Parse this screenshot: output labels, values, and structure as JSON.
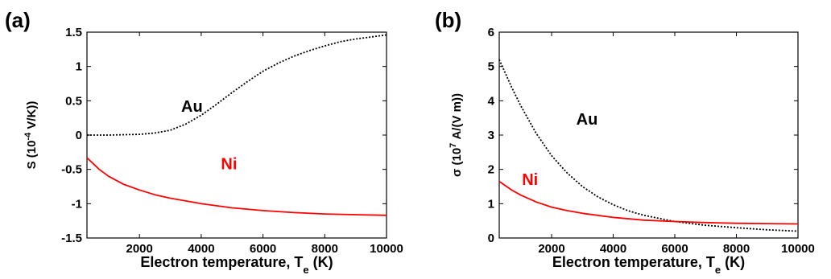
{
  "chart_data": [
    {
      "panel": "(a)",
      "type": "line",
      "title": "",
      "xlabel": "Electron temperature, T",
      "xlabel_sub": "e",
      "xlabel_unit": " (K)",
      "ylabel_pre": "S (10",
      "ylabel_sup": "-4",
      "ylabel_post": " V/K))",
      "xlim": [
        300,
        10000
      ],
      "ylim": [
        -1.5,
        1.5
      ],
      "xticks": [
        2000,
        4000,
        6000,
        8000,
        10000
      ],
      "yticks": [
        -1.5,
        -1,
        -0.5,
        0,
        0.5,
        1,
        1.5
      ],
      "ytick_labels": [
        "-1.5",
        "-1",
        "-0.5",
        "0",
        "0.5",
        "1",
        "1.5"
      ],
      "grid": false,
      "series": [
        {
          "name": "Au",
          "color": "#000000",
          "style": "dotted",
          "x": [
            300,
            1000,
            2000,
            2500,
            3000,
            3500,
            4000,
            4500,
            5000,
            5500,
            6000,
            6500,
            7000,
            7500,
            8000,
            8500,
            9000,
            9500,
            10000
          ],
          "y": [
            0.0,
            0.0,
            0.01,
            0.03,
            0.07,
            0.16,
            0.29,
            0.45,
            0.62,
            0.78,
            0.93,
            1.05,
            1.15,
            1.23,
            1.3,
            1.36,
            1.4,
            1.43,
            1.46
          ]
        },
        {
          "name": "Ni",
          "color": "#ff0000",
          "style": "solid",
          "x": [
            300,
            700,
            1000,
            1500,
            2000,
            2500,
            3000,
            4000,
            5000,
            6000,
            7000,
            8000,
            9000,
            10000
          ],
          "y": [
            -0.33,
            -0.5,
            -0.6,
            -0.72,
            -0.8,
            -0.87,
            -0.92,
            -1.0,
            -1.06,
            -1.1,
            -1.13,
            -1.15,
            -1.16,
            -1.17
          ]
        }
      ]
    },
    {
      "panel": "(b)",
      "type": "line",
      "title": "",
      "xlabel": "Electron temperature, T",
      "xlabel_sub": "e",
      "xlabel_unit": " (K)",
      "ylabel_pre": "σ (10",
      "ylabel_sup": "7",
      "ylabel_post": " A/(V m))",
      "xlim": [
        300,
        10000
      ],
      "ylim": [
        0,
        6
      ],
      "xticks": [
        2000,
        4000,
        6000,
        8000,
        10000
      ],
      "yticks": [
        0,
        1,
        2,
        3,
        4,
        5,
        6
      ],
      "ytick_labels": [
        "0",
        "1",
        "2",
        "3",
        "4",
        "5",
        "6"
      ],
      "grid": false,
      "series": [
        {
          "name": "Au",
          "color": "#000000",
          "style": "dotted",
          "x": [
            300,
            700,
            1000,
            1500,
            2000,
            2500,
            3000,
            3500,
            4000,
            4500,
            5000,
            6000,
            7000,
            8000,
            9000,
            10000
          ],
          "y": [
            5.2,
            4.4,
            3.85,
            3.05,
            2.4,
            1.9,
            1.5,
            1.2,
            0.97,
            0.79,
            0.66,
            0.48,
            0.37,
            0.3,
            0.24,
            0.2
          ]
        },
        {
          "name": "Ni",
          "color": "#ff0000",
          "style": "solid",
          "x": [
            300,
            700,
            1000,
            1500,
            2000,
            2500,
            3000,
            4000,
            5000,
            6000,
            7000,
            8000,
            9000,
            10000
          ],
          "y": [
            1.65,
            1.4,
            1.25,
            1.05,
            0.9,
            0.8,
            0.72,
            0.6,
            0.52,
            0.48,
            0.45,
            0.43,
            0.42,
            0.41
          ]
        }
      ]
    }
  ],
  "annotations": [
    {
      "panel": 0,
      "series": "Au",
      "x": 3700,
      "y": 0.34,
      "color": "#000000"
    },
    {
      "panel": 0,
      "series": "Ni",
      "x": 4900,
      "y": -0.5,
      "color": "#ff0000"
    },
    {
      "panel": 1,
      "series": "Au",
      "x": 3150,
      "y": 3.3,
      "color": "#000000"
    },
    {
      "panel": 1,
      "series": "Ni",
      "x": 1300,
      "y": 1.55,
      "color": "#ff0000"
    }
  ]
}
